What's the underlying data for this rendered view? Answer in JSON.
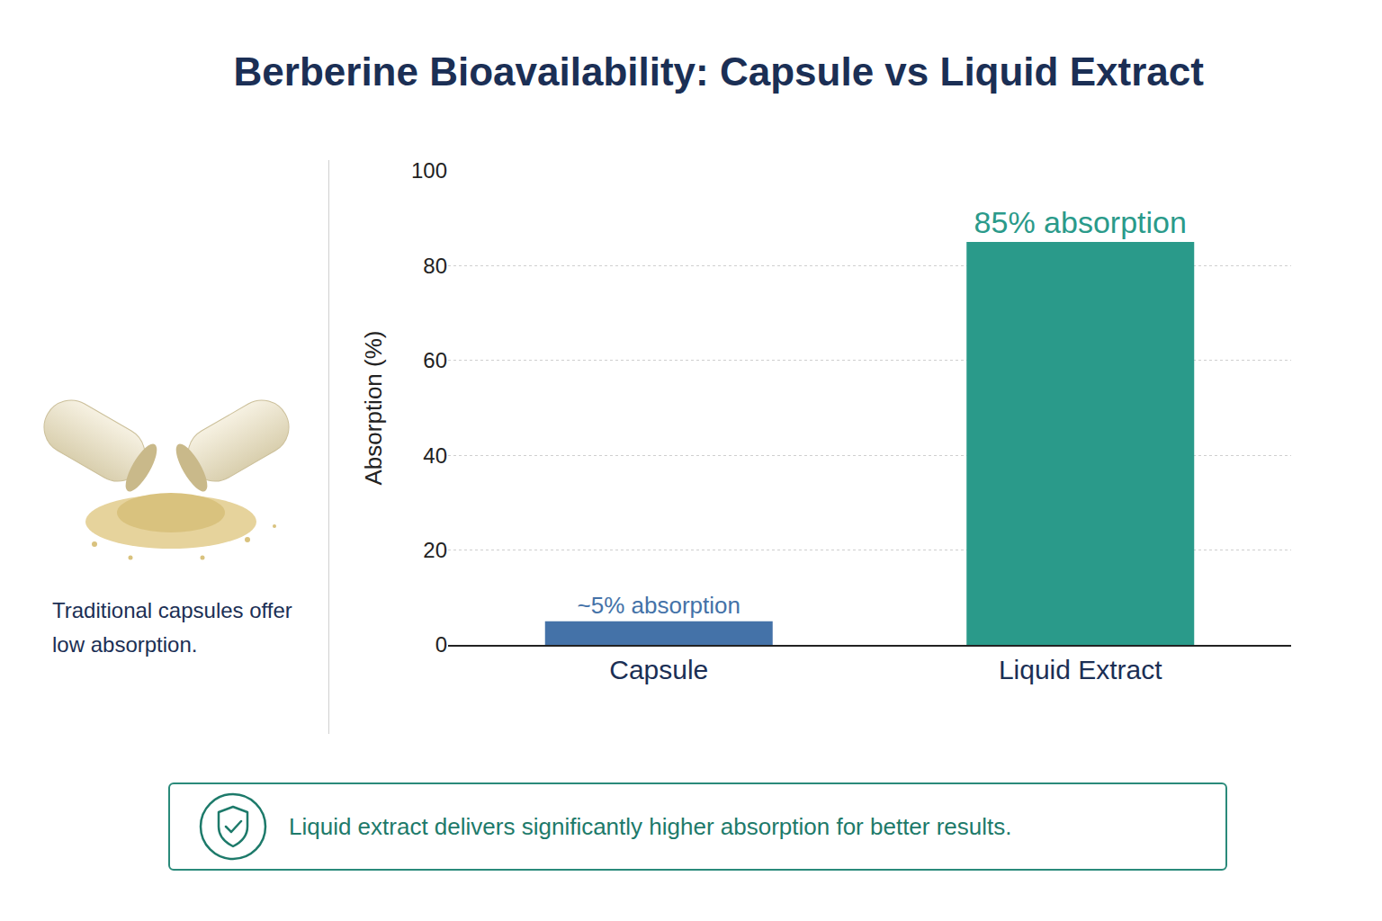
{
  "chart_data": {
    "type": "bar",
    "title": "Berberine Bioavailability: Capsule vs Liquid Extract",
    "y_label": "Absorption (%)",
    "categories": [
      "Capsule",
      "Liquid Extract"
    ],
    "values": [
      5,
      85
    ],
    "value_labels": [
      "~5% absorption",
      "85% absorption"
    ],
    "data_labels": true,
    "colors": [
      "#4472a8",
      "#2a9a8a"
    ],
    "ylim": [
      0,
      100
    ],
    "yticks": [
      0,
      20,
      40,
      60,
      80,
      100
    ],
    "grid": true,
    "annotations": [
      "Traditional capsules offer low absorption.",
      "Liquid extract delivers significantly higher absorption for better results."
    ]
  }
}
